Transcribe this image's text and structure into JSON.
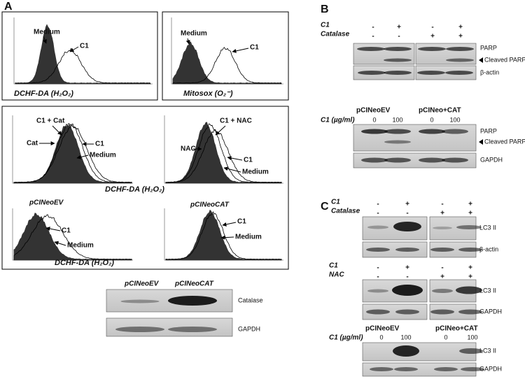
{
  "panel_a": {
    "label": "A",
    "h2o2_plot": {
      "labels": [
        "Medium",
        "C1"
      ],
      "caption": "DCHF-DA (H₂O₂)"
    },
    "mitosox_plot": {
      "labels": [
        "Medium",
        "C1"
      ],
      "caption": "Mitosox (O₂⁻)"
    },
    "catalase_plot": {
      "labels": [
        "C1 + Cat",
        "Cat",
        "C1",
        "Medium"
      ]
    },
    "nac_plot": {
      "labels": [
        "NAC",
        "C1 + NAC",
        "C1",
        "Medium"
      ]
    },
    "middle_caption": "DCHF-DA (H₂O₂)",
    "ev_plot": {
      "title": "pCINeoEV",
      "labels": [
        "C1",
        "Medium"
      ]
    },
    "cat_plot": {
      "title": "pCINeoCAT",
      "labels": [
        "C1",
        "Medium"
      ]
    },
    "bottom_caption": "DCHF-DA (H₂O₂)",
    "blot": {
      "columns": [
        "pCINeoEV",
        "pCINeoCAT"
      ],
      "rows": [
        "Catalase",
        "GAPDH"
      ]
    }
  },
  "panel_b": {
    "label": "B",
    "blot_1": {
      "conditions": [
        {
          "name": "C1",
          "signs": [
            "-",
            "+",
            "-",
            "+"
          ]
        },
        {
          "name": "Catalase",
          "signs": [
            "-",
            "-",
            "+",
            "+"
          ]
        }
      ],
      "rows": [
        "PARP",
        "Cleaved PARP",
        "β-actin"
      ]
    },
    "blot_2": {
      "columns": [
        "pCINeoEV",
        "pCINeo+CAT"
      ],
      "dose_label": "C1 (µg/ml)",
      "doses": [
        0,
        100,
        0,
        100
      ],
      "rows": [
        "PARP",
        "Cleaved PARP",
        "GAPDH"
      ]
    }
  },
  "panel_c": {
    "label": "C",
    "blot_1": {
      "conditions": [
        {
          "name": "C1",
          "signs": [
            "-",
            "+",
            "-",
            "+"
          ]
        },
        {
          "name": "Catalase",
          "signs": [
            "-",
            "-",
            "+",
            "+"
          ]
        }
      ],
      "rows": [
        "LC3 II",
        "β-actin"
      ]
    },
    "blot_2": {
      "conditions": [
        {
          "name": "C1",
          "signs": [
            "-",
            "+",
            "-",
            "+"
          ]
        },
        {
          "name": "NAC",
          "signs": [
            "-",
            "-",
            "+",
            "+"
          ]
        }
      ],
      "rows": [
        "LC3 II",
        "GAPDH"
      ]
    },
    "blot_3": {
      "columns": [
        "pCINeoEV",
        "pCINeo+CAT"
      ],
      "dose_label": "C1 (µg/ml)",
      "doses": [
        0,
        100,
        0,
        100
      ],
      "rows": [
        "LC3 II",
        "GAPDH"
      ]
    }
  }
}
